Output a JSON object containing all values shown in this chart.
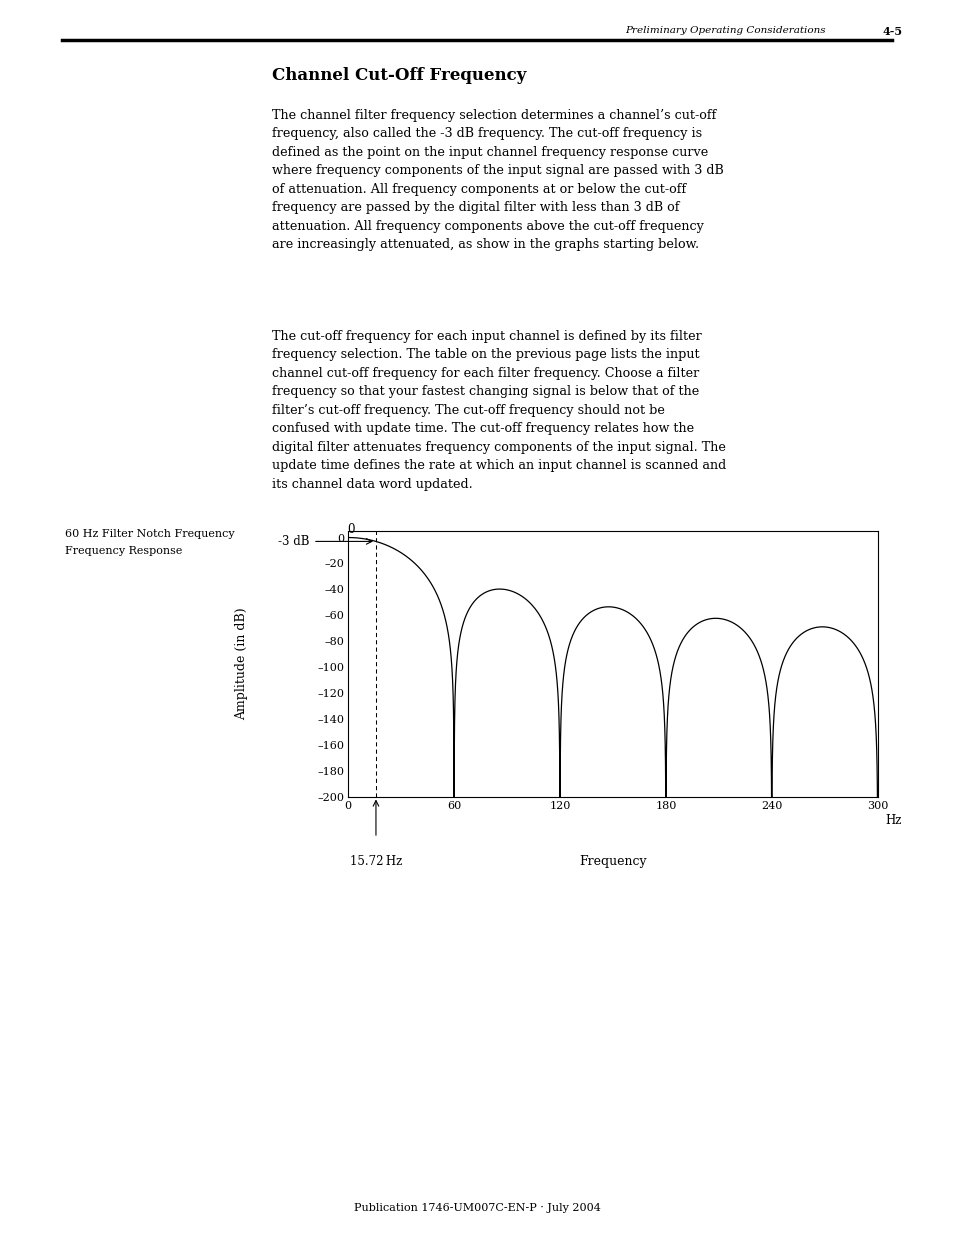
{
  "page_header_left": "Preliminary Operating Considerations",
  "page_header_right": "4-5",
  "section_title": "Channel Cut-Off Frequency",
  "paragraph1": "The channel filter frequency selection determines a channel’s cut-off\nfrequency, also called the -3 dB frequency. The cut-off frequency is\ndefined as the point on the input channel frequency response curve\nwhere frequency components of the input signal are passed with 3 dB\nof attenuation. All frequency components at or below the cut-off\nfrequency are passed by the digital filter with less than 3 dB of\nattenuation. All frequency components above the cut-off frequency\nare increasingly attenuated, as show in the graphs starting below.",
  "paragraph2": "The cut-off frequency for each input channel is defined by its filter\nfrequency selection. The table on the previous page lists the input\nchannel cut-off frequency for each filter frequency. Choose a filter\nfrequency so that your fastest changing signal is below that of the\nfilter’s cut-off frequency. The cut-off frequency should not be\nconfused with update time. The cut-off frequency relates how the\ndigital filter attenuates frequency components of the input signal. The\nupdate time defines the rate at which an input channel is scanned and\nits channel data word updated.",
  "graph_label_left1": "60 Hz Filter Notch Frequency",
  "graph_label_left2": "Frequency Response",
  "ylabel": "Amplitude (in dB)",
  "xlabel": "Frequency",
  "xlabel_unit": "Hz",
  "ytick_labels": [
    "0",
    "–20",
    "–40",
    "–60",
    "–80",
    "–100",
    "–120",
    "–140",
    "–160",
    "–180",
    "–200"
  ],
  "ytick_values": [
    0,
    -20,
    -40,
    -60,
    -80,
    -100,
    -120,
    -140,
    -160,
    -180,
    -200
  ],
  "xtick_labels": [
    "0",
    "60",
    "120",
    "180",
    "240",
    "300"
  ],
  "xtick_values": [
    0,
    60,
    120,
    180,
    240,
    300
  ],
  "ylim": [
    -200,
    5
  ],
  "xlim": [
    0,
    300
  ],
  "cutoff_freq": 15.72,
  "notch_freq": 60,
  "db3_label": "-3 dB",
  "cutoff_label": "15.72 Hz",
  "footer": "Publication 1746-UM007C-EN-P · July 2004",
  "bg_color": "#ffffff",
  "text_color": "#000000",
  "line_color": "#000000"
}
